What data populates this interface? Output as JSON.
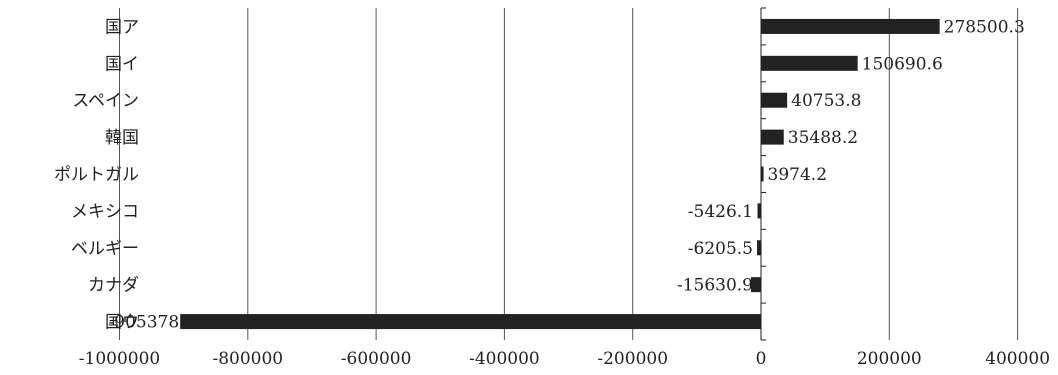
{
  "chart_data": {
    "type": "bar",
    "orientation": "horizontal",
    "categories": [
      "国ア",
      "国イ",
      "スペイン",
      "韓国",
      "ポルトガル",
      "メキシコ",
      "ベルギー",
      "カナダ",
      "国ウ"
    ],
    "values": [
      278500.3,
      150690.6,
      40753.8,
      35488.2,
      3974.2,
      -5426.1,
      -6205.5,
      -15630.9,
      -905378
    ],
    "data_labels": [
      "278500.3",
      "150690.6",
      "40753.8",
      "35488.2",
      "3974.2",
      "-5426.1",
      "-6205.5",
      "-15630.9",
      "-905378"
    ],
    "x_ticks": [
      -1000000,
      -800000,
      -600000,
      -400000,
      -200000,
      0,
      200000,
      400000
    ],
    "x_tick_labels": [
      "-1000000",
      "-800000",
      "-600000",
      "-400000",
      "-200000",
      "0",
      "200000",
      "400000"
    ],
    "xlim": [
      -1000000,
      450000
    ],
    "grid": true,
    "legend": "none",
    "bar_color": "#222222"
  }
}
